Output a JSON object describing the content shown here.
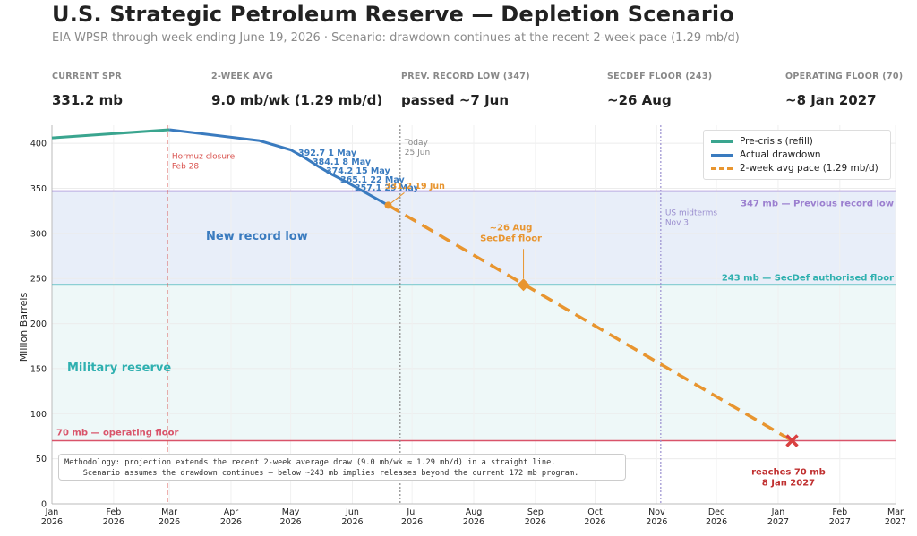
{
  "header": {
    "title": "U.S. Strategic Petroleum Reserve — Depletion Scenario",
    "subtitle": "EIA WPSR through week ending June 19, 2026   ·   Scenario: drawdown continues at the recent 2-week pace (1.29 mb/d)"
  },
  "stats": [
    {
      "label": "CURRENT SPR",
      "value": "331.2 mb"
    },
    {
      "label": "2-WEEK AVG",
      "value": "9.0 mb/wk (1.29 mb/d)"
    },
    {
      "label": "PREV. RECORD LOW (347)",
      "value": "passed ~7 Jun"
    },
    {
      "label": "SECDEF FLOOR (243)",
      "value": "~26 Aug"
    },
    {
      "label": "OPERATING FLOOR (70)",
      "value": "~8 Jan 2027"
    }
  ],
  "legend": [
    {
      "label": "Pre-crisis (refill)",
      "color": "#3aa58f",
      "style": "solid"
    },
    {
      "label": "Actual drawdown",
      "color": "#3a7bbf",
      "style": "solid"
    },
    {
      "label": "2-week avg pace (1.29 mb/d)",
      "color": "#e8952f",
      "style": "dashed"
    }
  ],
  "methodology": {
    "line1": "Methodology: projection extends the recent 2-week average draw (9.0 mb/wk ≈ 1.29 mb/d) in a straight line.",
    "line2": "    Scenario assumes the drawdown continues — below ~243 mb implies releases beyond the current 172 mb program."
  },
  "chart_data": {
    "type": "line",
    "title": "U.S. Strategic Petroleum Reserve — Depletion Scenario",
    "ylabel": "Million Barrels",
    "xlabel": "",
    "ylim": [
      0,
      420
    ],
    "yticks": [
      0,
      50,
      100,
      150,
      200,
      250,
      300,
      350,
      400
    ],
    "xlim": [
      "2026-01-01",
      "2027-03-01"
    ],
    "xticks": [
      {
        "date": "2026-01-01",
        "label": "Jan\n2026"
      },
      {
        "date": "2026-02-01",
        "label": "Feb\n2026"
      },
      {
        "date": "2026-03-01",
        "label": "Mar\n2026"
      },
      {
        "date": "2026-04-01",
        "label": "Apr\n2026"
      },
      {
        "date": "2026-05-01",
        "label": "May\n2026"
      },
      {
        "date": "2026-06-01",
        "label": "Jun\n2026"
      },
      {
        "date": "2026-07-01",
        "label": "Jul\n2026"
      },
      {
        "date": "2026-08-01",
        "label": "Aug\n2026"
      },
      {
        "date": "2026-09-01",
        "label": "Sep\n2026"
      },
      {
        "date": "2026-10-01",
        "label": "Oct\n2026"
      },
      {
        "date": "2026-11-01",
        "label": "Nov\n2026"
      },
      {
        "date": "2026-12-01",
        "label": "Dec\n2026"
      },
      {
        "date": "2027-01-01",
        "label": "Jan\n2027"
      },
      {
        "date": "2027-02-01",
        "label": "Feb\n2027"
      },
      {
        "date": "2027-03-01",
        "label": "Mar\n2027"
      }
    ],
    "grid": true,
    "legend_position": "top-right",
    "series": [
      {
        "name": "Pre-crisis (refill)",
        "color": "#3aa58f",
        "style": "solid",
        "points": [
          [
            "2026-01-01",
            406
          ],
          [
            "2026-03-01",
            415
          ]
        ]
      },
      {
        "name": "Actual drawdown",
        "color": "#3a7bbf",
        "style": "solid",
        "points": [
          [
            "2026-03-01",
            415
          ],
          [
            "2026-04-15",
            403
          ],
          [
            "2026-05-01",
            392.7
          ],
          [
            "2026-05-08",
            384.1
          ],
          [
            "2026-05-15",
            374.2
          ],
          [
            "2026-05-22",
            365.1
          ],
          [
            "2026-05-29",
            357.1
          ],
          [
            "2026-06-19",
            331.2
          ]
        ]
      },
      {
        "name": "2-week avg pace (1.29 mb/d)",
        "color": "#e8952f",
        "style": "dashed",
        "points": [
          [
            "2026-06-19",
            331.2
          ],
          [
            "2027-01-08",
            70
          ]
        ]
      }
    ],
    "point_labels": [
      {
        "date": "2026-05-01",
        "value": 392.7,
        "text": "392.7  1 May",
        "color": "#3a7bbf"
      },
      {
        "date": "2026-05-08",
        "value": 384.1,
        "text": "384.1  8 May",
        "color": "#3a7bbf"
      },
      {
        "date": "2026-05-15",
        "value": 374.2,
        "text": "374.2  15 May",
        "color": "#3a7bbf"
      },
      {
        "date": "2026-05-22",
        "value": 365.1,
        "text": "365.1  22 May",
        "color": "#3a7bbf"
      },
      {
        "date": "2026-05-29",
        "value": 357.1,
        "text": "357.1  29 May",
        "color": "#3a7bbf"
      },
      {
        "date": "2026-06-19",
        "value": 331.2,
        "text": "331.2  19 Jun",
        "color": "#e8952f"
      }
    ],
    "hlines": [
      {
        "value": 347,
        "text": "347 mb — Previous record low",
        "color": "#9b7fcf"
      },
      {
        "value": 243,
        "text": "243 mb — SecDef authorised floor",
        "color": "#2fb0b0"
      },
      {
        "value": 70,
        "text": "70 mb — operating floor",
        "color": "#d9546a"
      }
    ],
    "vlines": [
      {
        "date": "2026-02-28",
        "line1": "Hormuz closure",
        "line2": "Feb 28",
        "color": "#d9534f",
        "style": "dashed"
      },
      {
        "date": "2026-06-25",
        "line1": "Today",
        "line2": "25 Jun",
        "color": "#888888",
        "style": "dotted"
      },
      {
        "date": "2026-11-03",
        "line1": "US midterms",
        "line2": "Nov 3",
        "color": "#9b8fcf",
        "style": "dotted"
      }
    ],
    "regions": [
      {
        "text": "New record low",
        "color": "#3a7bbf"
      },
      {
        "text": "Military reserve",
        "color": "#2fb0b0"
      }
    ],
    "markers": [
      {
        "date": "2026-08-26",
        "value": 243,
        "shape": "diamond",
        "line1": "~26 Aug",
        "line2": "SecDef floor",
        "color": "#e8952f"
      },
      {
        "date": "2027-01-08",
        "value": 70,
        "shape": "x",
        "line1": "reaches 70 mb",
        "line2": "8 Jan 2027",
        "color": "#d94040"
      }
    ]
  }
}
